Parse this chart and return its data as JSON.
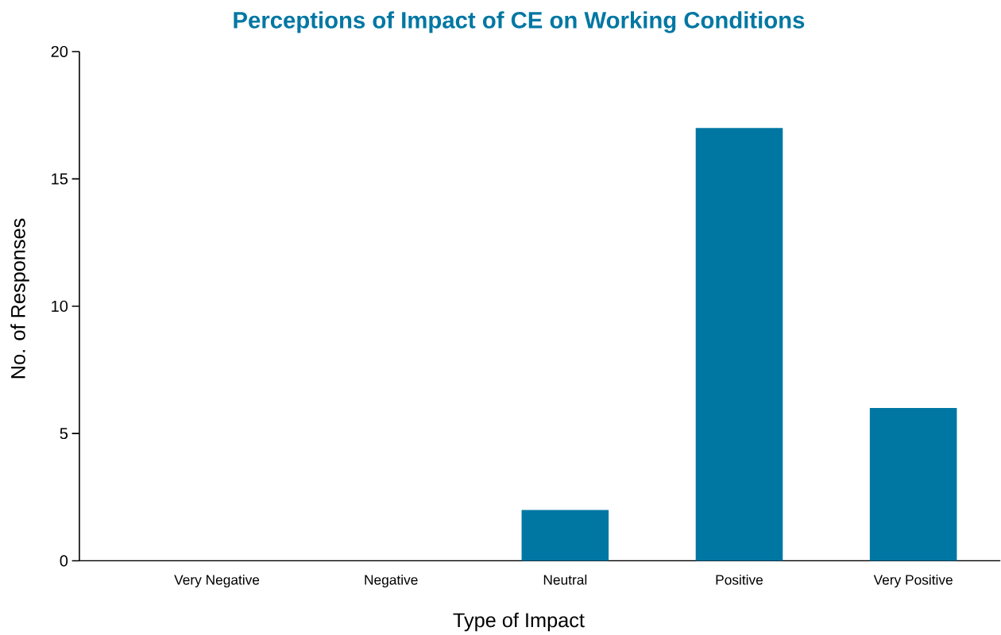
{
  "chart_data": {
    "type": "bar",
    "title": "Perceptions of Impact of CE on Working Conditions",
    "xlabel": "Type of Impact",
    "ylabel": "No. of Responses",
    "categories": [
      "Very Negative",
      "Negative",
      "Neutral",
      "Positive",
      "Very Positive"
    ],
    "values": [
      0,
      0,
      2,
      17,
      6
    ],
    "color": "#0077a3",
    "ylim": [
      0,
      20
    ],
    "yticks": [
      0,
      5,
      10,
      15,
      20
    ]
  }
}
